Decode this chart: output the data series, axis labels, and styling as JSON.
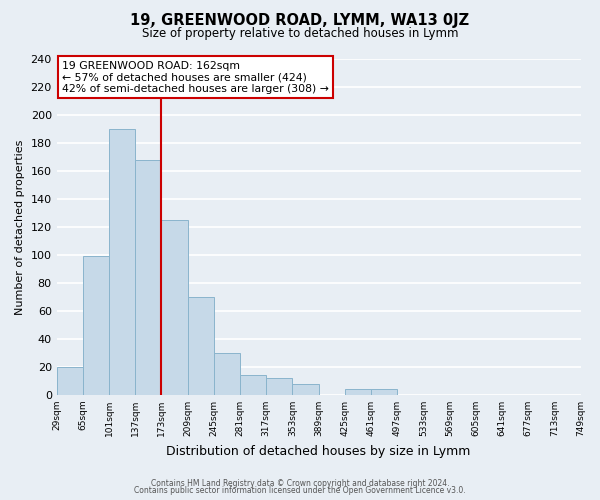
{
  "title": "19, GREENWOOD ROAD, LYMM, WA13 0JZ",
  "subtitle": "Size of property relative to detached houses in Lymm",
  "xlabel": "Distribution of detached houses by size in Lymm",
  "ylabel": "Number of detached properties",
  "bin_labels": [
    "29sqm",
    "65sqm",
    "101sqm",
    "137sqm",
    "173sqm",
    "209sqm",
    "245sqm",
    "281sqm",
    "317sqm",
    "353sqm",
    "389sqm",
    "425sqm",
    "461sqm",
    "497sqm",
    "533sqm",
    "569sqm",
    "605sqm",
    "641sqm",
    "677sqm",
    "713sqm",
    "749sqm"
  ],
  "bar_values": [
    20,
    99,
    190,
    168,
    125,
    70,
    30,
    14,
    12,
    8,
    0,
    4,
    4,
    0,
    0,
    0,
    0,
    0,
    0,
    0
  ],
  "bar_color": "#c6d9e8",
  "bar_edge_color": "#8ab4cc",
  "vline_x": 4,
  "vline_color": "#cc0000",
  "ylim": [
    0,
    240
  ],
  "yticks": [
    0,
    20,
    40,
    60,
    80,
    100,
    120,
    140,
    160,
    180,
    200,
    220,
    240
  ],
  "annotation_title": "19 GREENWOOD ROAD: 162sqm",
  "annotation_line1": "← 57% of detached houses are smaller (424)",
  "annotation_line2": "42% of semi-detached houses are larger (308) →",
  "annotation_box_color": "#ffffff",
  "annotation_box_edge": "#cc0000",
  "footer1": "Contains HM Land Registry data © Crown copyright and database right 2024.",
  "footer2": "Contains public sector information licensed under the Open Government Licence v3.0.",
  "fig_bg_color": "#e8eef4",
  "plot_bg_color": "#e8eef4",
  "grid_color": "#ffffff"
}
